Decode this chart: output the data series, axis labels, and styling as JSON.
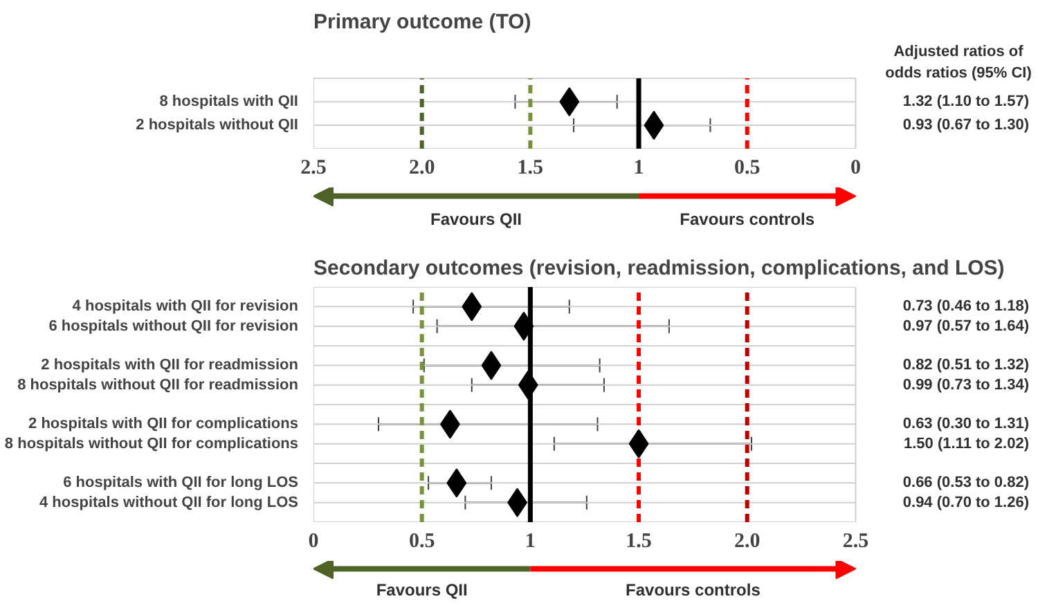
{
  "chart_data": [
    {
      "type": "scatter",
      "title": "Primary outcome (TO)",
      "orientation": "horizontal",
      "marker": "diamond",
      "grid": "y",
      "categories": [
        "8 hospitals with QII",
        "2 hospitals without QII"
      ],
      "series": [
        {
          "color": "#000000",
          "values": [
            1.32,
            0.93
          ],
          "errors": [
            [
              1.1,
              1.57
            ],
            [
              0.67,
              1.3
            ]
          ],
          "value_labels": [
            "1.32 (1.10 to 1.57)",
            "0.93 (0.67 to 1.30)"
          ]
        }
      ],
      "xlim": [
        2.5,
        0
      ],
      "xticks": [
        2.5,
        {
          "value": 2,
          "label": "2.0"
        },
        1.5,
        1,
        0.5,
        0
      ],
      "ref_lines": [
        {
          "axis": "x",
          "value": 2,
          "color": "#4f6228",
          "line_style": "dashed"
        },
        {
          "axis": "x",
          "value": 1.5,
          "color": "#77933c",
          "line_style": "dashed"
        },
        {
          "axis": "x",
          "value": 1,
          "color": "#000000",
          "line_style": "solid"
        },
        {
          "axis": "x",
          "value": 0.5,
          "color": "#ff0000",
          "line_style": "dashed"
        }
      ],
      "annotations": [
        "Favours QII",
        "Favours controls",
        "Adjusted ratios of odds ratios (95% CI)"
      ]
    },
    {
      "type": "scatter",
      "title": "Secondary outcomes (revision, readmission, complications, and LOS)",
      "orientation": "horizontal",
      "marker": "diamond",
      "grid": "y",
      "categories": [
        "4 hospitals with QII for revision",
        "6 hospitals without QII for revision",
        null,
        "2 hospitals with QII for readmission",
        "8 hospitals without QII for readmission",
        null,
        "2 hospitals with QII for complications",
        "8 hospitals without QII for complications",
        null,
        "6 hospitals with QII for long LOS",
        "4 hospitals without QII for long LOS"
      ],
      "series": [
        {
          "color": "#000000",
          "values": [
            0.73,
            0.97,
            null,
            0.82,
            0.99,
            null,
            0.63,
            1.5,
            null,
            0.66,
            0.94
          ],
          "errors": [
            [
              0.46,
              1.18
            ],
            [
              0.57,
              1.64
            ],
            null,
            [
              0.51,
              1.32
            ],
            [
              0.73,
              1.34
            ],
            null,
            [
              0.3,
              1.31
            ],
            [
              1.11,
              2.02
            ],
            null,
            [
              0.53,
              0.82
            ],
            [
              0.7,
              1.26
            ]
          ],
          "value_labels": [
            "0.73 (0.46 to 1.18)",
            "0.97 (0.57 to 1.64)",
            null,
            "0.82 (0.51 to 1.32)",
            "0.99 (0.73 to 1.34)",
            null,
            "0.63 (0.30 to 1.31)",
            "1.50 (1.11 to 2.02)",
            null,
            "0.66 (0.53 to 0.82)",
            "0.94 (0.70 to 1.26)"
          ]
        }
      ],
      "xlim": [
        0,
        2.5
      ],
      "xticks": [
        0,
        0.5,
        1,
        1.5,
        {
          "value": 2,
          "label": "2.0"
        },
        2.5
      ],
      "ref_lines": [
        {
          "axis": "x",
          "value": 0.5,
          "color": "#77933c",
          "line_style": "dashed"
        },
        {
          "axis": "x",
          "value": 1,
          "color": "#000000",
          "line_style": "solid"
        },
        {
          "axis": "x",
          "value": 1.5,
          "color": "#ff0000",
          "line_style": "dashed"
        },
        {
          "axis": "x",
          "value": 2,
          "color": "#c00000",
          "line_style": "dashed"
        }
      ],
      "annotations": [
        "Favours QII",
        "Favours controls"
      ]
    }
  ]
}
